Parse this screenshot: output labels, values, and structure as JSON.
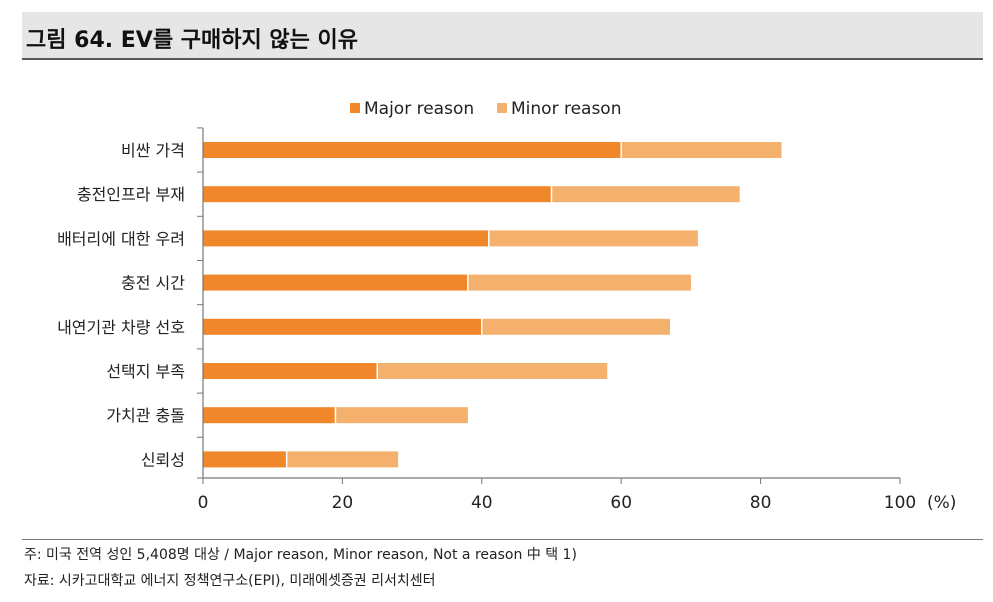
{
  "figure": {
    "title": "그림 64. EV를 구매하지 않는 이유"
  },
  "chart_data": {
    "type": "bar",
    "orientation": "horizontal",
    "stacked": true,
    "categories": [
      "비싼 가격",
      "충전인프라 부재",
      "배터리에 대한 우려",
      "충전 시간",
      "내연기관 차량 선호",
      "선택지 부족",
      "가치관 충돌",
      "신뢰성"
    ],
    "series": [
      {
        "name": "Major reason",
        "color": "#f0882b",
        "values": [
          60,
          50,
          41,
          38,
          40,
          25,
          19,
          12
        ]
      },
      {
        "name": "Minor reason",
        "color": "#f4b16d",
        "values": [
          23,
          27,
          30,
          32,
          27,
          33,
          19,
          16
        ]
      }
    ],
    "xlim": [
      0,
      100
    ],
    "xticks": [
      "0",
      "20",
      "40",
      "60",
      "80",
      "100"
    ],
    "xunit": "(%)",
    "grid": false,
    "legend_position": "top"
  },
  "footnotes": {
    "note": "주: 미국 전역 성인 5,408명 대상 / Major reason, Minor reason, Not a reason 中 택 1)",
    "source": "자료: 시카고대학교 에너지 정책연구소(EPI), 미래에셋증권 리서치센터"
  }
}
